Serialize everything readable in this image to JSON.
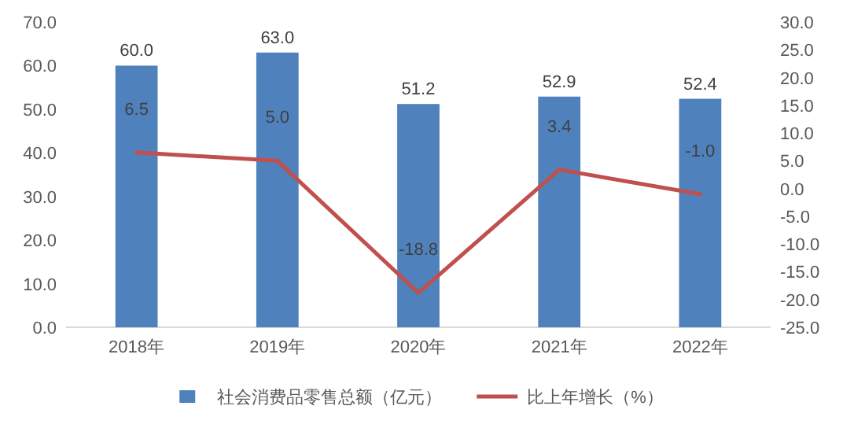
{
  "chart_data": {
    "type": "bar",
    "categories": [
      "2018年",
      "2019年",
      "2020年",
      "2021年",
      "2022年"
    ],
    "series": [
      {
        "name": "社会消费品零售总额（亿元）",
        "color": "#4f81bd",
        "values": [
          60.0,
          63.0,
          51.2,
          52.9,
          52.4
        ],
        "value_labels": [
          "60.0",
          "63.0",
          "51.2",
          "52.9",
          "52.4"
        ]
      },
      {
        "name": "比上年增长（%）",
        "type": "line",
        "axis": "y2",
        "color": "#c0504d",
        "values": [
          6.5,
          5.0,
          -18.8,
          3.4,
          -1.0
        ],
        "value_labels": [
          "6.5",
          "5.0",
          "-18.8",
          "3.4",
          "-1.0"
        ]
      }
    ],
    "ylim": [
      0,
      70
    ],
    "yticks": [
      {
        "value": 0,
        "label": "0.0"
      },
      {
        "value": 10,
        "label": "10.0"
      },
      {
        "value": 20,
        "label": "20.0"
      },
      {
        "value": 30,
        "label": "30.0"
      },
      {
        "value": 40,
        "label": "40.0"
      },
      {
        "value": 50,
        "label": "50.0"
      },
      {
        "value": 60,
        "label": "60.0"
      },
      {
        "value": 70,
        "label": "70.0"
      }
    ],
    "y2lim": [
      -25,
      30
    ],
    "y2ticks": [
      {
        "value": -25,
        "label": "-25.0"
      },
      {
        "value": -20,
        "label": "-20.0"
      },
      {
        "value": -15,
        "label": "-15.0"
      },
      {
        "value": -10,
        "label": "-10.0"
      },
      {
        "value": -5,
        "label": "-5.0"
      },
      {
        "value": 0,
        "label": "0.0"
      },
      {
        "value": 5,
        "label": "5.0"
      },
      {
        "value": 10,
        "label": "10.0"
      },
      {
        "value": 15,
        "label": "15.0"
      },
      {
        "value": 20,
        "label": "20.0"
      },
      {
        "value": 25,
        "label": "25.0"
      },
      {
        "value": 30,
        "label": "30.0"
      }
    ],
    "legend": "bottom",
    "marker": "none",
    "line_style": "solid"
  }
}
